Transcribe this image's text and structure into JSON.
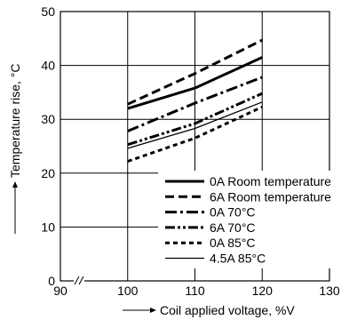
{
  "chart_data": {
    "type": "line",
    "title": "",
    "xlabel": "Coil applied voltage, %V",
    "ylabel": "Temperature rise, °C",
    "xlim": [
      90,
      130
    ],
    "ylim": [
      0,
      50
    ],
    "xticks": [
      "90",
      "100",
      "110",
      "120",
      "130"
    ],
    "yticks": [
      "0",
      "10",
      "20",
      "30",
      "40",
      "50"
    ],
    "grid": true,
    "legend_position": "bottom-right",
    "series": [
      {
        "name": "0A Room temperature",
        "style": "solid",
        "width": 3,
        "color": "#000000",
        "points": [
          [
            100,
            32.0
          ],
          [
            110,
            35.8
          ],
          [
            120,
            41.5
          ]
        ]
      },
      {
        "name": "6A Room temperature",
        "style": "dashed",
        "width": 3,
        "color": "#000000",
        "points": [
          [
            100,
            32.8
          ],
          [
            110,
            38.5
          ],
          [
            120,
            44.7
          ]
        ]
      },
      {
        "name": "0A 70°C",
        "style": "dashdot",
        "width": 3,
        "color": "#000000",
        "points": [
          [
            100,
            27.8
          ],
          [
            110,
            33.0
          ],
          [
            120,
            37.8
          ]
        ]
      },
      {
        "name": "6A 70°C",
        "style": "dashdotdot",
        "width": 3,
        "color": "#000000",
        "points": [
          [
            100,
            25.3
          ],
          [
            110,
            29.2
          ],
          [
            120,
            34.8
          ]
        ]
      },
      {
        "name": "0A 85°C",
        "style": "dotted",
        "width": 3,
        "color": "#000000",
        "points": [
          [
            100,
            22.2
          ],
          [
            110,
            26.5
          ],
          [
            120,
            32.3
          ]
        ]
      },
      {
        "name": "4.5A 85°C",
        "style": "solid",
        "width": 1.3,
        "color": "#000000",
        "points": [
          [
            100,
            24.6
          ],
          [
            110,
            28.3
          ],
          [
            120,
            33.2
          ]
        ]
      }
    ]
  }
}
